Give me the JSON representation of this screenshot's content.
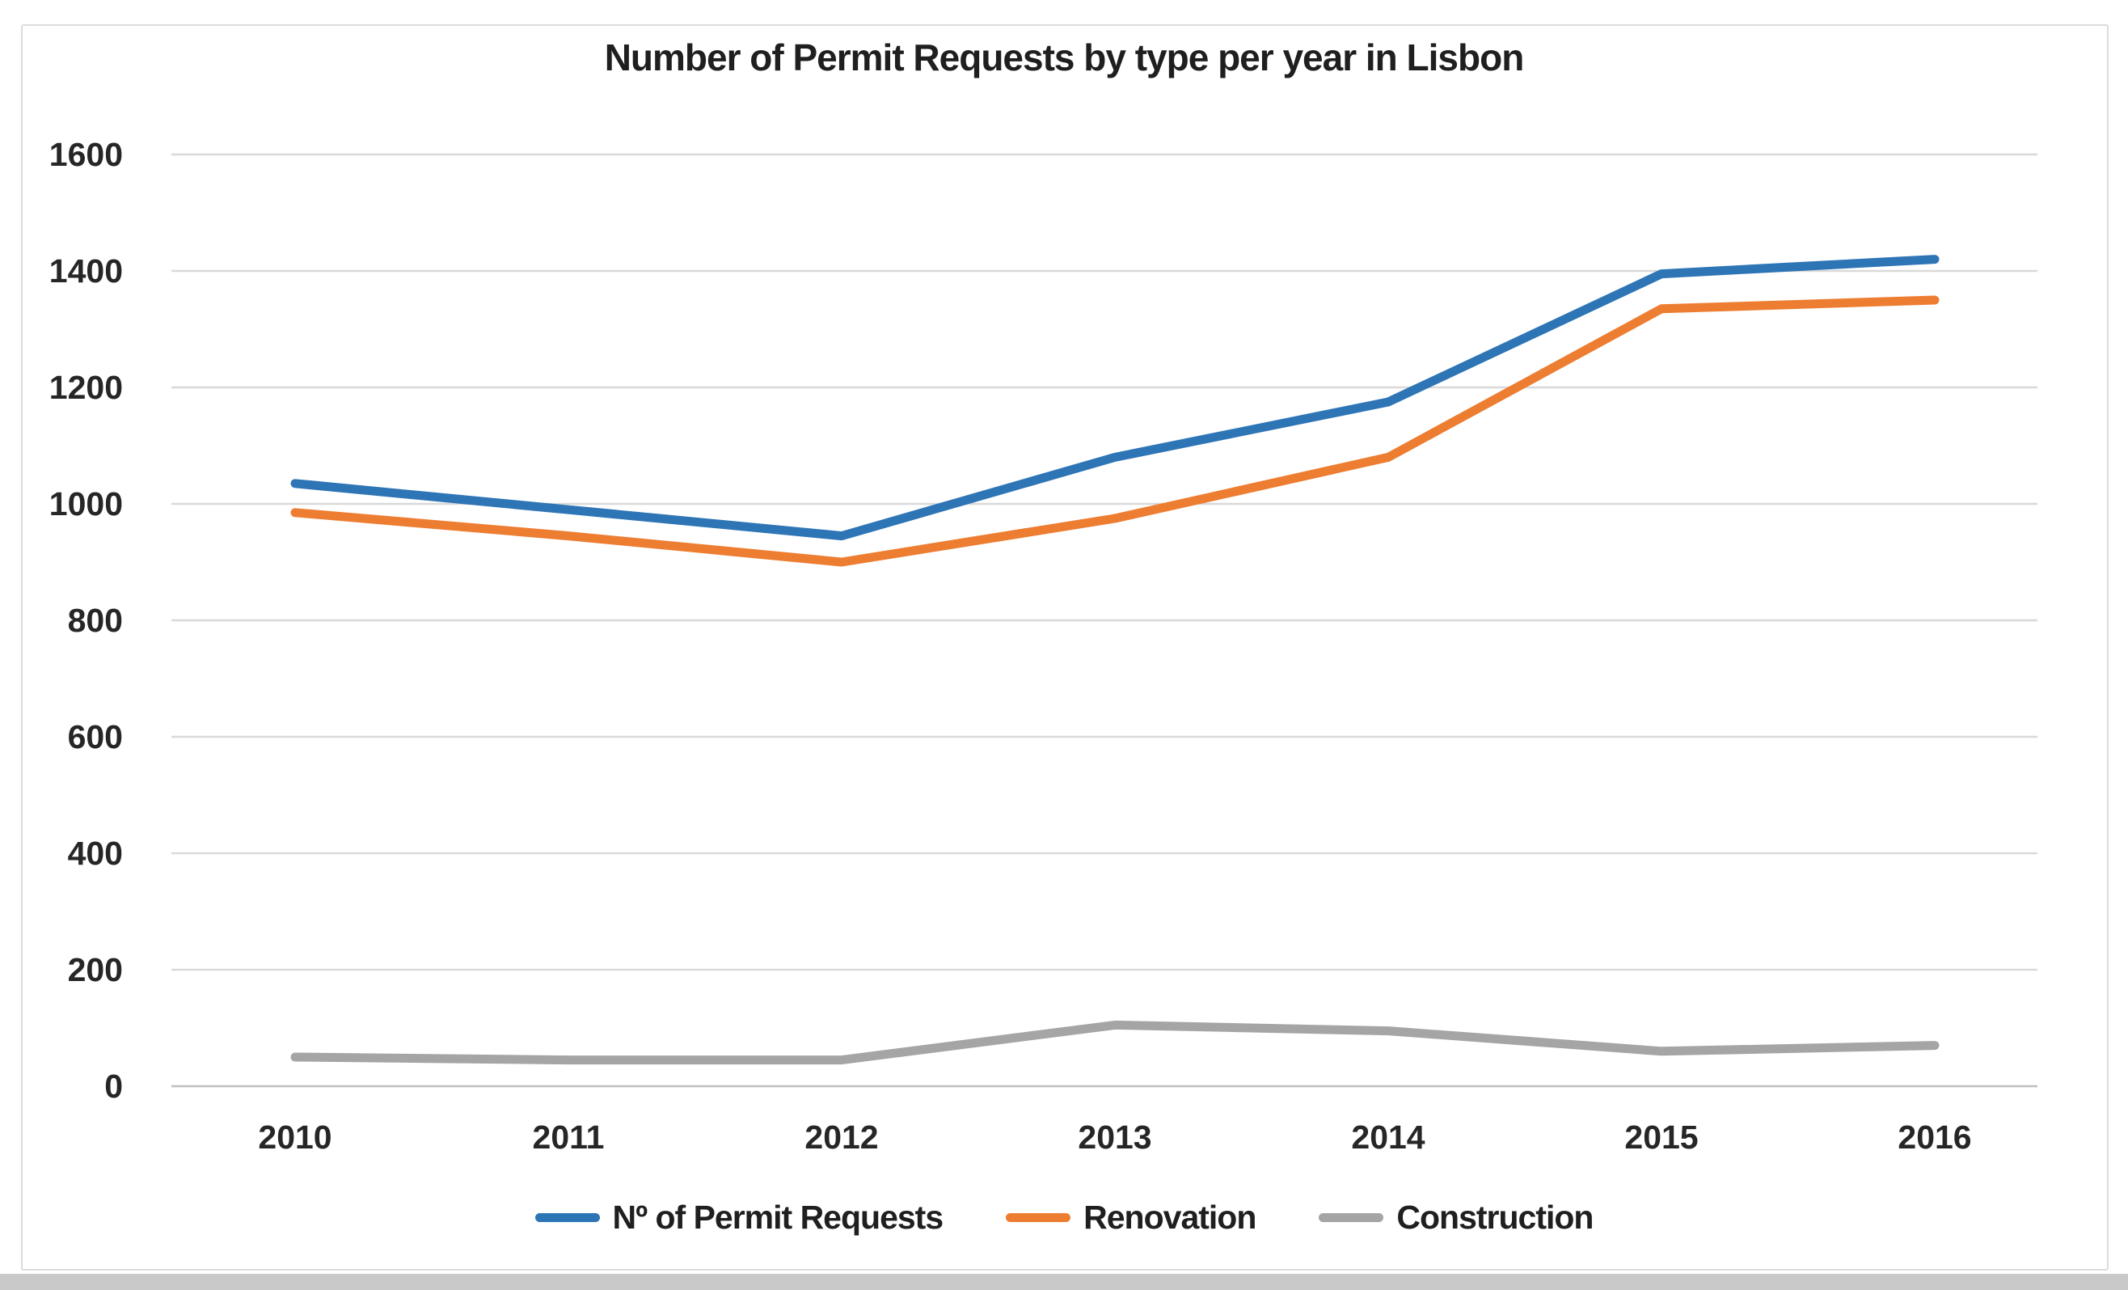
{
  "chart_data": {
    "type": "line",
    "title": "Number of Permit Requests by type per year in Lisbon",
    "categories": [
      "2010",
      "2011",
      "2012",
      "2013",
      "2014",
      "2015",
      "2016"
    ],
    "series": [
      {
        "name": "Nº of Permit Requests",
        "color": "#2E75B6",
        "values": [
          1035,
          990,
          945,
          1080,
          1175,
          1395,
          1420
        ]
      },
      {
        "name": "Renovation",
        "color": "#ED7D31",
        "values": [
          985,
          945,
          900,
          975,
          1080,
          1335,
          1350
        ]
      },
      {
        "name": "Construction",
        "color": "#A5A5A5",
        "values": [
          50,
          45,
          45,
          105,
          95,
          60,
          70
        ]
      }
    ],
    "xlabel": "",
    "ylabel": "",
    "ylim": [
      0,
      1600
    ],
    "y_ticks": [
      0,
      200,
      400,
      600,
      800,
      1000,
      1200,
      1400,
      1600
    ],
    "grid": "horizontal",
    "legend_position": "bottom"
  },
  "colors": {
    "gridline": "#d9d9d9",
    "baseline": "#bdbdbd",
    "tick_text": "#262626"
  }
}
